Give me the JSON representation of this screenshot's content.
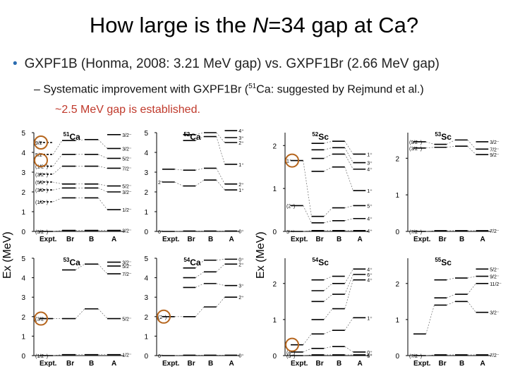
{
  "title": {
    "pre": "How large is the ",
    "italic": "N",
    "post": "=34 gap at Ca?"
  },
  "bullet": "GXPF1B (Honma, 2008: 3.21 MeV gap) vs. GXPF1Br (2.66 MeV gap)",
  "sub": {
    "dash": "–",
    "pre": "Systematic improvement with GXPF1Br (",
    "sup": "51",
    "post": "Ca: suggested by Rejmund et al.)"
  },
  "sub2": "~2.5 MeV gap is established.",
  "ylabel": "Ex (MeV)",
  "columns": [
    "Expt.",
    "Br",
    "B",
    "A"
  ],
  "panels": [
    {
      "id": "ca51",
      "sup": "51",
      "el": "Ca",
      "ymax": 5,
      "yticks": [
        0,
        1,
        2,
        3,
        4,
        5
      ],
      "expt": [
        0,
        1.5,
        2.1,
        2.5,
        2.9,
        3.3,
        3.9,
        4.5
      ],
      "br": [
        0.05,
        1.7,
        2.2,
        2.4,
        3.3,
        3.9,
        4.6
      ],
      "b": [
        0.05,
        1.7,
        2.2,
        2.4,
        3.3,
        3.9,
        4.65
      ],
      "a": [
        0.05,
        1.1,
        2.0,
        2.3,
        3.2,
        3.7,
        4.2,
        4.9
      ],
      "leftlabels": [
        "(3/2⁻)",
        "(1/2⁻)",
        "(3/2⁻)",
        "(5/2⁻)",
        "(3/2⁻)",
        "(1/2⁻)",
        "5/2⁻",
        "9/2⁻"
      ],
      "rightlabels": [
        "3/2⁻",
        "1/2⁻",
        "3/2⁻",
        "5/2⁻",
        "7/2⁻",
        "5/2⁻",
        "3/2⁻",
        "3/2⁻"
      ],
      "circles": [
        3.6,
        4.5
      ]
    },
    {
      "id": "ca52",
      "sup": "52",
      "el": "Ca",
      "ymax": 5,
      "yticks": [
        0,
        1,
        2,
        3,
        4,
        5
      ],
      "expt": [
        0,
        2.5,
        3.15
      ],
      "br": [
        0.02,
        2.3,
        3.1,
        4.6,
        4.9
      ],
      "b": [
        0.02,
        2.6,
        3.2,
        4.8,
        5.0
      ],
      "a": [
        0.02,
        2.1,
        2.4,
        3.4,
        4.5,
        4.75,
        5.1
      ],
      "leftlabels": [
        "0⁺",
        "2⁺"
      ],
      "rightlabels": [
        "0⁺",
        "1⁺",
        "2⁺",
        "1⁺",
        "2⁺",
        "3⁺",
        "4⁺"
      ],
      "circles": []
    },
    {
      "id": "ca53",
      "sup": "53",
      "el": "Ca",
      "ymax": 5,
      "yticks": [
        0,
        1,
        2,
        3,
        4,
        5
      ],
      "expt": [
        0,
        1.9
      ],
      "br": [
        0.05,
        1.9,
        4.4
      ],
      "b": [
        0.05,
        2.4,
        4.7
      ],
      "a": [
        0.05,
        1.9,
        4.2,
        4.6,
        4.8
      ],
      "leftlabels": [
        "(1/2⁻)",
        "(3/2⁻)"
      ],
      "rightlabels": [
        "1/2⁻",
        "5/2⁻",
        "7/2⁻",
        "5/2⁻",
        "3/2⁻"
      ],
      "circles": [
        1.9
      ]
    },
    {
      "id": "ca54",
      "sup": "54",
      "el": "Ca",
      "ymax": 5,
      "yticks": [
        0,
        1,
        2,
        3,
        4,
        5
      ],
      "expt": [
        0,
        2.0
      ],
      "br": [
        0.02,
        2.0,
        3.5,
        4.0,
        4.5
      ],
      "b": [
        0.02,
        2.5,
        3.7,
        4.3,
        4.9
      ],
      "a": [
        0.02,
        3.0,
        3.6,
        4.7,
        4.95
      ],
      "leftlabels": [
        "0⁺",
        "(2⁺)"
      ],
      "rightlabels": [
        "0⁺",
        "2⁺",
        "3⁺",
        "2⁺",
        "0⁺"
      ],
      "circles": [
        2.0
      ]
    },
    {
      "id": "ca52b",
      "sup": "52",
      "el": "Sc",
      "ymax": 2.3,
      "yticks": [
        0,
        1,
        2
      ],
      "expt": [
        0,
        0.6,
        1.65
      ],
      "br": [
        0.02,
        0.2,
        0.35,
        1.4,
        1.7,
        1.9,
        2.05
      ],
      "b": [
        0.02,
        0.25,
        0.55,
        1.5,
        1.8,
        1.95,
        2.1
      ],
      "a": [
        0.02,
        0.3,
        0.6,
        0.95,
        1.45,
        1.6,
        1.8
      ],
      "leftlabels": [
        "3⁽⁺⁾",
        "(2⁺)",
        "1⁺"
      ],
      "rightlabels": [
        "4⁺",
        "4⁺",
        "5⁺",
        "1⁺",
        "4⁺",
        "3⁺",
        "1⁺"
      ],
      "circles": [
        1.65
      ]
    },
    {
      "id": "sc53",
      "sup": "53",
      "el": "Sc",
      "ymax": 2.7,
      "yticks": [
        0,
        1,
        2
      ],
      "expt": [
        0,
        2.28,
        2.45
      ],
      "br": [
        0.02,
        2.3,
        2.38
      ],
      "b": [
        0.02,
        2.33,
        2.5
      ],
      "a": [
        0.02,
        2.1,
        2.25,
        2.45
      ],
      "leftlabels": [
        "(7/2⁻)",
        "(3/2⁻)",
        "(9/2⁻)"
      ],
      "rightlabels": [
        "7/2⁻",
        "9/2⁻",
        "7/2⁻",
        "3/2⁻"
      ],
      "circles": []
    },
    {
      "id": "sc54",
      "sup": "54",
      "el": "Sc",
      "ymax": 2.7,
      "yticks": [
        0,
        1,
        2
      ],
      "expt": [
        0,
        0.1,
        0.3
      ],
      "br": [
        0.02,
        0.2,
        0.6,
        1.0,
        1.5,
        1.8,
        2.1
      ],
      "b": [
        0.02,
        0.25,
        0.7,
        1.3,
        1.7,
        2.0,
        2.2
      ],
      "a": [
        0.02,
        0.1,
        1.05,
        2.1,
        2.25,
        2.4
      ],
      "leftlabels": [
        "(3⁺)",
        "(4⁺)"
      ],
      "rightlabels": [
        "4⁺",
        "0⁺",
        "1⁺",
        "4⁺",
        "6⁺",
        "4⁺",
        "3⁺"
      ],
      "circles": [
        0.3
      ]
    },
    {
      "id": "sc55",
      "sup": "55",
      "el": "Sc",
      "ymax": 2.7,
      "yticks": [
        0,
        1,
        2
      ],
      "expt": [
        0,
        0.6
      ],
      "br": [
        0.02,
        1.4,
        1.6,
        2.1
      ],
      "b": [
        0.02,
        1.5,
        1.7,
        2.15
      ],
      "a": [
        0.02,
        1.2,
        2.0,
        2.2,
        2.4
      ],
      "leftlabels": [
        "(7/2⁻)"
      ],
      "rightlabels": [
        "7/2⁻",
        "3/2⁻",
        "11/2⁻",
        "9/2⁻",
        "5/2⁻"
      ],
      "circles": []
    }
  ]
}
